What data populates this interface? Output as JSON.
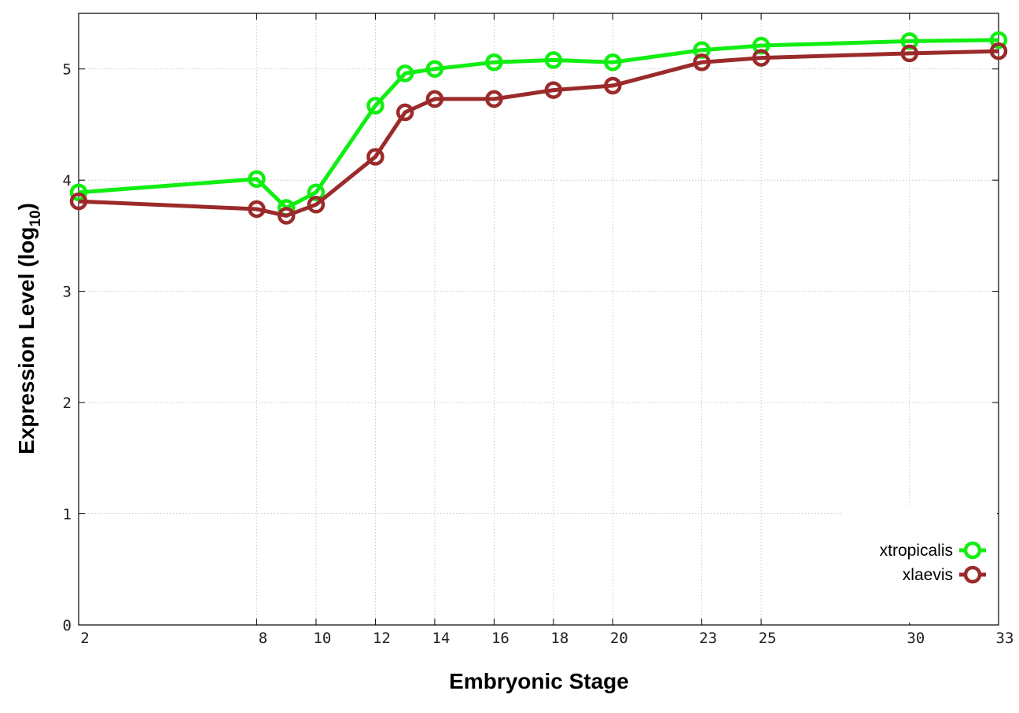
{
  "chart_data": {
    "type": "line",
    "xlabel": "Embryonic Stage",
    "ylabel_main": "Expression Level (log",
    "ylabel_sub": "10",
    "ylabel_close": ")",
    "xlim": [
      2,
      33
    ],
    "ylim": [
      0,
      5.5
    ],
    "x_ticks": [
      2,
      8,
      10,
      12,
      14,
      16,
      18,
      20,
      23,
      25,
      30,
      33
    ],
    "y_ticks": [
      0,
      1,
      2,
      3,
      4,
      5
    ],
    "grid": true,
    "legend_position": "bottom-right",
    "series": [
      {
        "name": "xtropicalis",
        "color": "#11ee11",
        "x": [
          2,
          8,
          9,
          10,
          12,
          13,
          14,
          16,
          18,
          20,
          23,
          25,
          30,
          33
        ],
        "y": [
          3.89,
          4.01,
          3.75,
          3.89,
          4.67,
          4.96,
          5.0,
          5.06,
          5.08,
          5.06,
          5.17,
          5.21,
          5.25,
          5.26
        ]
      },
      {
        "name": "xlaevis",
        "color": "#9b2a2a",
        "x": [
          2,
          8,
          9,
          10,
          12,
          13,
          14,
          16,
          18,
          20,
          23,
          25,
          30,
          33
        ],
        "y": [
          3.81,
          3.74,
          3.68,
          3.78,
          4.21,
          4.61,
          4.73,
          4.73,
          4.81,
          4.85,
          5.06,
          5.1,
          5.14,
          5.16
        ]
      }
    ]
  }
}
